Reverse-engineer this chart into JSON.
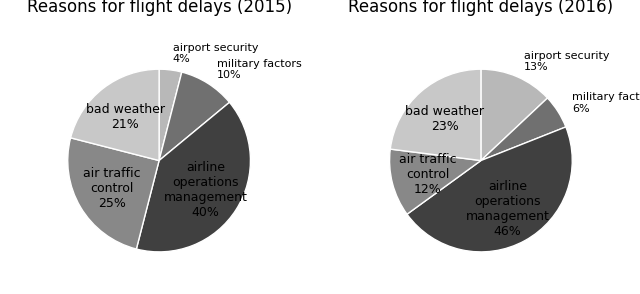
{
  "chart2015": {
    "title": "Reasons for flight delays (2015)",
    "values": [
      4,
      10,
      40,
      25,
      21
    ],
    "colors": [
      "#b8b8b8",
      "#707070",
      "#404040",
      "#888888",
      "#c8c8c8"
    ],
    "startangle": 90,
    "label_names": [
      "airport security",
      "military factors",
      "airline\noperations\nmanagement",
      "air traffic\ncontrol",
      "bad weather"
    ],
    "pcts": [
      "4%",
      "10%",
      "40%",
      "25%",
      "21%"
    ],
    "inside": [
      false,
      false,
      true,
      true,
      true
    ]
  },
  "chart2016": {
    "title": "Reasons for flight delays (2016)",
    "values": [
      13,
      6,
      46,
      12,
      23
    ],
    "colors": [
      "#b8b8b8",
      "#707070",
      "#404040",
      "#888888",
      "#c8c8c8"
    ],
    "startangle": 90,
    "label_names": [
      "airport security",
      "military factors",
      "airline\noperations\nmanagement",
      "air traffic\ncontrol",
      "bad weather"
    ],
    "pcts": [
      "13%",
      "6%",
      "46%",
      "12%",
      "23%"
    ],
    "inside": [
      false,
      false,
      true,
      true,
      true
    ]
  },
  "bg_color": "#ffffff",
  "text_color": "#000000",
  "title_fontsize": 12,
  "label_fontsize": 8,
  "inside_fontsize": 9
}
